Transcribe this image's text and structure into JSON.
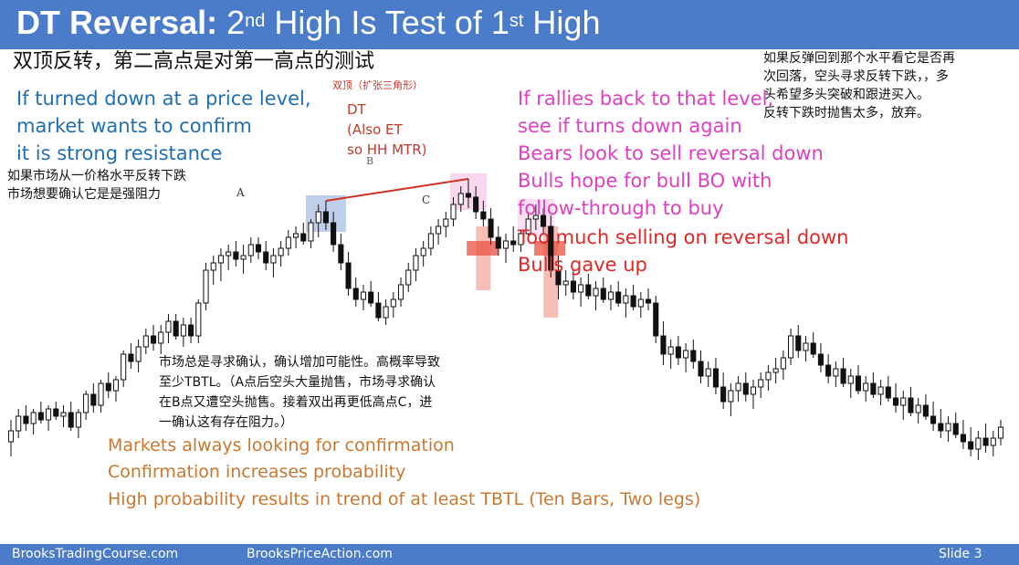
{
  "header": {
    "title_bold": "DT Reversal:",
    "title_p1": " 2",
    "title_sup1": "nd",
    "title_p2": " High Is Test of 1",
    "title_sup2": "st",
    "title_p3": " High"
  },
  "subtitle_cn": "双顶反转，第二高点是对第一高点的测试",
  "top_right_cn": [
    "如果反弹回到那个水平看它是否再",
    "次回落，空头寻求反转下跌，，多",
    "头希望多头突破和跟进买入。",
    "反转下跌时抛售太多，放弃。"
  ],
  "left_block_en": [
    "If turned down at a price level,",
    "market wants to confirm",
    "it is strong resistance"
  ],
  "left_block_cn": [
    "如果市场从一价格水平反转下跌",
    "市场想要确认它是是强阻力"
  ],
  "dt_label_cn": "双顶（扩张三角形）",
  "dt_label_en": [
    "DT",
    "(Also ET",
    "so HH MTR)"
  ],
  "points": {
    "a": "A",
    "b": "B",
    "c": "C"
  },
  "right_block_pink": [
    "If rallies back to that level,",
    "see if turns down again",
    "Bears look to sell reversal down",
    "Bulls hope for bull BO with",
    "follow-through to buy"
  ],
  "right_block_red": [
    "Too much selling on reversal down",
    "Bulls gave up"
  ],
  "middle_cn": [
    "市场总是寻求确认，确认增加可能性。高概率导致",
    "至少TBTL。（A点后空头大量抛售，市场寻求确认",
    "在B点又遭空头抛售。接着双出再更低高点C，进",
    "一确认这有存在阻力。）"
  ],
  "bottom_orange": [
    "Markets always looking for confirmation",
    "Confirmation increases probability",
    "High probability results in trend of at least TBTL (Ten Bars, Two legs)"
  ],
  "footer": {
    "left": "BrooksTradingCourse.com",
    "center": "BrooksPriceAction.com",
    "right": "Slide  3"
  },
  "colors": {
    "header": "#4a7cc9",
    "blue_text": "#1f6fb2",
    "pink_text": "#e040c0",
    "red_text": "#e02828",
    "orange_text": "#c87830",
    "dt_text": "#c0392b",
    "trendline": "#d03020"
  },
  "chart_data": {
    "type": "candlestick",
    "title": "",
    "xlabel": "",
    "ylabel": "",
    "ylim": [
      0,
      100
    ],
    "grid": false,
    "legend": "none",
    "annotations": [
      "A",
      "B",
      "C"
    ],
    "candles": [
      {
        "o": 19,
        "h": 25,
        "l": 15,
        "c": 22
      },
      {
        "o": 22,
        "h": 28,
        "l": 20,
        "c": 26
      },
      {
        "o": 26,
        "h": 29,
        "l": 22,
        "c": 24
      },
      {
        "o": 24,
        "h": 28,
        "l": 21,
        "c": 27
      },
      {
        "o": 27,
        "h": 30,
        "l": 24,
        "c": 25
      },
      {
        "o": 25,
        "h": 29,
        "l": 22,
        "c": 28
      },
      {
        "o": 28,
        "h": 30,
        "l": 25,
        "c": 26
      },
      {
        "o": 26,
        "h": 29,
        "l": 23,
        "c": 27
      },
      {
        "o": 27,
        "h": 30,
        "l": 22,
        "c": 23
      },
      {
        "o": 23,
        "h": 28,
        "l": 20,
        "c": 27
      },
      {
        "o": 27,
        "h": 33,
        "l": 25,
        "c": 32
      },
      {
        "o": 32,
        "h": 35,
        "l": 27,
        "c": 29
      },
      {
        "o": 29,
        "h": 36,
        "l": 27,
        "c": 35
      },
      {
        "o": 35,
        "h": 38,
        "l": 31,
        "c": 33
      },
      {
        "o": 33,
        "h": 37,
        "l": 30,
        "c": 36
      },
      {
        "o": 36,
        "h": 44,
        "l": 34,
        "c": 43
      },
      {
        "o": 43,
        "h": 46,
        "l": 39,
        "c": 41
      },
      {
        "o": 41,
        "h": 47,
        "l": 38,
        "c": 45
      },
      {
        "o": 45,
        "h": 50,
        "l": 43,
        "c": 48
      },
      {
        "o": 48,
        "h": 51,
        "l": 44,
        "c": 46
      },
      {
        "o": 46,
        "h": 51,
        "l": 43,
        "c": 49
      },
      {
        "o": 49,
        "h": 54,
        "l": 46,
        "c": 52
      },
      {
        "o": 52,
        "h": 54,
        "l": 47,
        "c": 48
      },
      {
        "o": 48,
        "h": 53,
        "l": 45,
        "c": 51
      },
      {
        "o": 51,
        "h": 53,
        "l": 46,
        "c": 48
      },
      {
        "o": 48,
        "h": 58,
        "l": 46,
        "c": 57
      },
      {
        "o": 57,
        "h": 68,
        "l": 55,
        "c": 66
      },
      {
        "o": 66,
        "h": 70,
        "l": 62,
        "c": 68
      },
      {
        "o": 68,
        "h": 72,
        "l": 63,
        "c": 70
      },
      {
        "o": 70,
        "h": 73,
        "l": 66,
        "c": 71
      },
      {
        "o": 71,
        "h": 74,
        "l": 67,
        "c": 69
      },
      {
        "o": 69,
        "h": 73,
        "l": 65,
        "c": 70
      },
      {
        "o": 70,
        "h": 75,
        "l": 68,
        "c": 73
      },
      {
        "o": 73,
        "h": 75,
        "l": 69,
        "c": 71
      },
      {
        "o": 71,
        "h": 74,
        "l": 66,
        "c": 68
      },
      {
        "o": 68,
        "h": 72,
        "l": 64,
        "c": 70
      },
      {
        "o": 70,
        "h": 74,
        "l": 67,
        "c": 72
      },
      {
        "o": 72,
        "h": 77,
        "l": 70,
        "c": 75
      },
      {
        "o": 75,
        "h": 78,
        "l": 72,
        "c": 76
      },
      {
        "o": 76,
        "h": 79,
        "l": 73,
        "c": 74
      },
      {
        "o": 74,
        "h": 80,
        "l": 72,
        "c": 79
      },
      {
        "o": 79,
        "h": 84,
        "l": 75,
        "c": 82
      },
      {
        "o": 82,
        "h": 85,
        "l": 77,
        "c": 79
      },
      {
        "o": 79,
        "h": 82,
        "l": 71,
        "c": 73
      },
      {
        "o": 73,
        "h": 76,
        "l": 66,
        "c": 68
      },
      {
        "o": 68,
        "h": 71,
        "l": 59,
        "c": 61
      },
      {
        "o": 61,
        "h": 64,
        "l": 56,
        "c": 58
      },
      {
        "o": 58,
        "h": 62,
        "l": 55,
        "c": 60
      },
      {
        "o": 60,
        "h": 63,
        "l": 56,
        "c": 57
      },
      {
        "o": 57,
        "h": 60,
        "l": 52,
        "c": 53
      },
      {
        "o": 53,
        "h": 58,
        "l": 51,
        "c": 56
      },
      {
        "o": 56,
        "h": 60,
        "l": 53,
        "c": 58
      },
      {
        "o": 58,
        "h": 64,
        "l": 56,
        "c": 62
      },
      {
        "o": 62,
        "h": 68,
        "l": 60,
        "c": 66
      },
      {
        "o": 66,
        "h": 72,
        "l": 63,
        "c": 70
      },
      {
        "o": 70,
        "h": 74,
        "l": 67,
        "c": 72
      },
      {
        "o": 72,
        "h": 78,
        "l": 70,
        "c": 76
      },
      {
        "o": 76,
        "h": 80,
        "l": 73,
        "c": 78
      },
      {
        "o": 78,
        "h": 82,
        "l": 75,
        "c": 80
      },
      {
        "o": 80,
        "h": 86,
        "l": 78,
        "c": 84
      },
      {
        "o": 84,
        "h": 89,
        "l": 82,
        "c": 87
      },
      {
        "o": 87,
        "h": 91,
        "l": 83,
        "c": 86
      },
      {
        "o": 86,
        "h": 89,
        "l": 80,
        "c": 82
      },
      {
        "o": 82,
        "h": 85,
        "l": 78,
        "c": 80
      },
      {
        "o": 80,
        "h": 83,
        "l": 73,
        "c": 75
      },
      {
        "o": 75,
        "h": 78,
        "l": 70,
        "c": 72
      },
      {
        "o": 72,
        "h": 76,
        "l": 68,
        "c": 74
      },
      {
        "o": 74,
        "h": 78,
        "l": 71,
        "c": 73
      },
      {
        "o": 73,
        "h": 77,
        "l": 71,
        "c": 76
      },
      {
        "o": 76,
        "h": 82,
        "l": 74,
        "c": 80
      },
      {
        "o": 80,
        "h": 84,
        "l": 77,
        "c": 81
      },
      {
        "o": 81,
        "h": 83,
        "l": 76,
        "c": 78
      },
      {
        "o": 78,
        "h": 81,
        "l": 64,
        "c": 66
      },
      {
        "o": 66,
        "h": 70,
        "l": 58,
        "c": 62
      },
      {
        "o": 62,
        "h": 66,
        "l": 59,
        "c": 63
      },
      {
        "o": 63,
        "h": 66,
        "l": 58,
        "c": 60
      },
      {
        "o": 60,
        "h": 64,
        "l": 56,
        "c": 62
      },
      {
        "o": 62,
        "h": 65,
        "l": 58,
        "c": 59
      },
      {
        "o": 59,
        "h": 63,
        "l": 55,
        "c": 61
      },
      {
        "o": 61,
        "h": 64,
        "l": 57,
        "c": 58
      },
      {
        "o": 58,
        "h": 62,
        "l": 55,
        "c": 60
      },
      {
        "o": 60,
        "h": 63,
        "l": 56,
        "c": 57
      },
      {
        "o": 57,
        "h": 61,
        "l": 53,
        "c": 59
      },
      {
        "o": 59,
        "h": 62,
        "l": 55,
        "c": 56
      },
      {
        "o": 56,
        "h": 60,
        "l": 53,
        "c": 58
      },
      {
        "o": 58,
        "h": 61,
        "l": 55,
        "c": 57
      },
      {
        "o": 57,
        "h": 59,
        "l": 46,
        "c": 48
      },
      {
        "o": 48,
        "h": 52,
        "l": 40,
        "c": 43
      },
      {
        "o": 43,
        "h": 47,
        "l": 39,
        "c": 45
      },
      {
        "o": 45,
        "h": 48,
        "l": 40,
        "c": 42
      },
      {
        "o": 42,
        "h": 46,
        "l": 38,
        "c": 44
      },
      {
        "o": 44,
        "h": 47,
        "l": 39,
        "c": 41
      },
      {
        "o": 41,
        "h": 44,
        "l": 35,
        "c": 37
      },
      {
        "o": 37,
        "h": 41,
        "l": 34,
        "c": 39
      },
      {
        "o": 39,
        "h": 42,
        "l": 32,
        "c": 34
      },
      {
        "o": 34,
        "h": 38,
        "l": 28,
        "c": 30
      },
      {
        "o": 30,
        "h": 35,
        "l": 26,
        "c": 33
      },
      {
        "o": 33,
        "h": 37,
        "l": 30,
        "c": 35
      },
      {
        "o": 35,
        "h": 38,
        "l": 30,
        "c": 32
      },
      {
        "o": 32,
        "h": 36,
        "l": 28,
        "c": 34
      },
      {
        "o": 34,
        "h": 38,
        "l": 31,
        "c": 36
      },
      {
        "o": 36,
        "h": 40,
        "l": 33,
        "c": 38
      },
      {
        "o": 38,
        "h": 42,
        "l": 35,
        "c": 39
      },
      {
        "o": 39,
        "h": 44,
        "l": 36,
        "c": 42
      },
      {
        "o": 42,
        "h": 50,
        "l": 40,
        "c": 48
      },
      {
        "o": 48,
        "h": 51,
        "l": 42,
        "c": 44
      },
      {
        "o": 44,
        "h": 48,
        "l": 41,
        "c": 46
      },
      {
        "o": 46,
        "h": 49,
        "l": 42,
        "c": 43
      },
      {
        "o": 43,
        "h": 46,
        "l": 38,
        "c": 40
      },
      {
        "o": 40,
        "h": 43,
        "l": 35,
        "c": 37
      },
      {
        "o": 37,
        "h": 41,
        "l": 34,
        "c": 39
      },
      {
        "o": 39,
        "h": 42,
        "l": 34,
        "c": 35
      },
      {
        "o": 35,
        "h": 39,
        "l": 31,
        "c": 37
      },
      {
        "o": 37,
        "h": 40,
        "l": 32,
        "c": 33
      },
      {
        "o": 33,
        "h": 37,
        "l": 30,
        "c": 35
      },
      {
        "o": 35,
        "h": 38,
        "l": 31,
        "c": 32
      },
      {
        "o": 32,
        "h": 36,
        "l": 29,
        "c": 34
      },
      {
        "o": 34,
        "h": 37,
        "l": 30,
        "c": 31
      },
      {
        "o": 31,
        "h": 35,
        "l": 27,
        "c": 29
      },
      {
        "o": 29,
        "h": 33,
        "l": 25,
        "c": 31
      },
      {
        "o": 31,
        "h": 34,
        "l": 26,
        "c": 27
      },
      {
        "o": 27,
        "h": 31,
        "l": 24,
        "c": 29
      },
      {
        "o": 29,
        "h": 32,
        "l": 25,
        "c": 26
      },
      {
        "o": 26,
        "h": 30,
        "l": 22,
        "c": 24
      },
      {
        "o": 24,
        "h": 28,
        "l": 20,
        "c": 22
      },
      {
        "o": 22,
        "h": 26,
        "l": 19,
        "c": 24
      },
      {
        "o": 24,
        "h": 27,
        "l": 20,
        "c": 21
      },
      {
        "o": 21,
        "h": 25,
        "l": 17,
        "c": 19
      },
      {
        "o": 19,
        "h": 23,
        "l": 15,
        "c": 17
      },
      {
        "o": 17,
        "h": 22,
        "l": 14,
        "c": 20
      },
      {
        "o": 20,
        "h": 24,
        "l": 16,
        "c": 18
      },
      {
        "o": 18,
        "h": 22,
        "l": 15,
        "c": 20
      },
      {
        "o": 20,
        "h": 25,
        "l": 18,
        "c": 23
      }
    ]
  }
}
